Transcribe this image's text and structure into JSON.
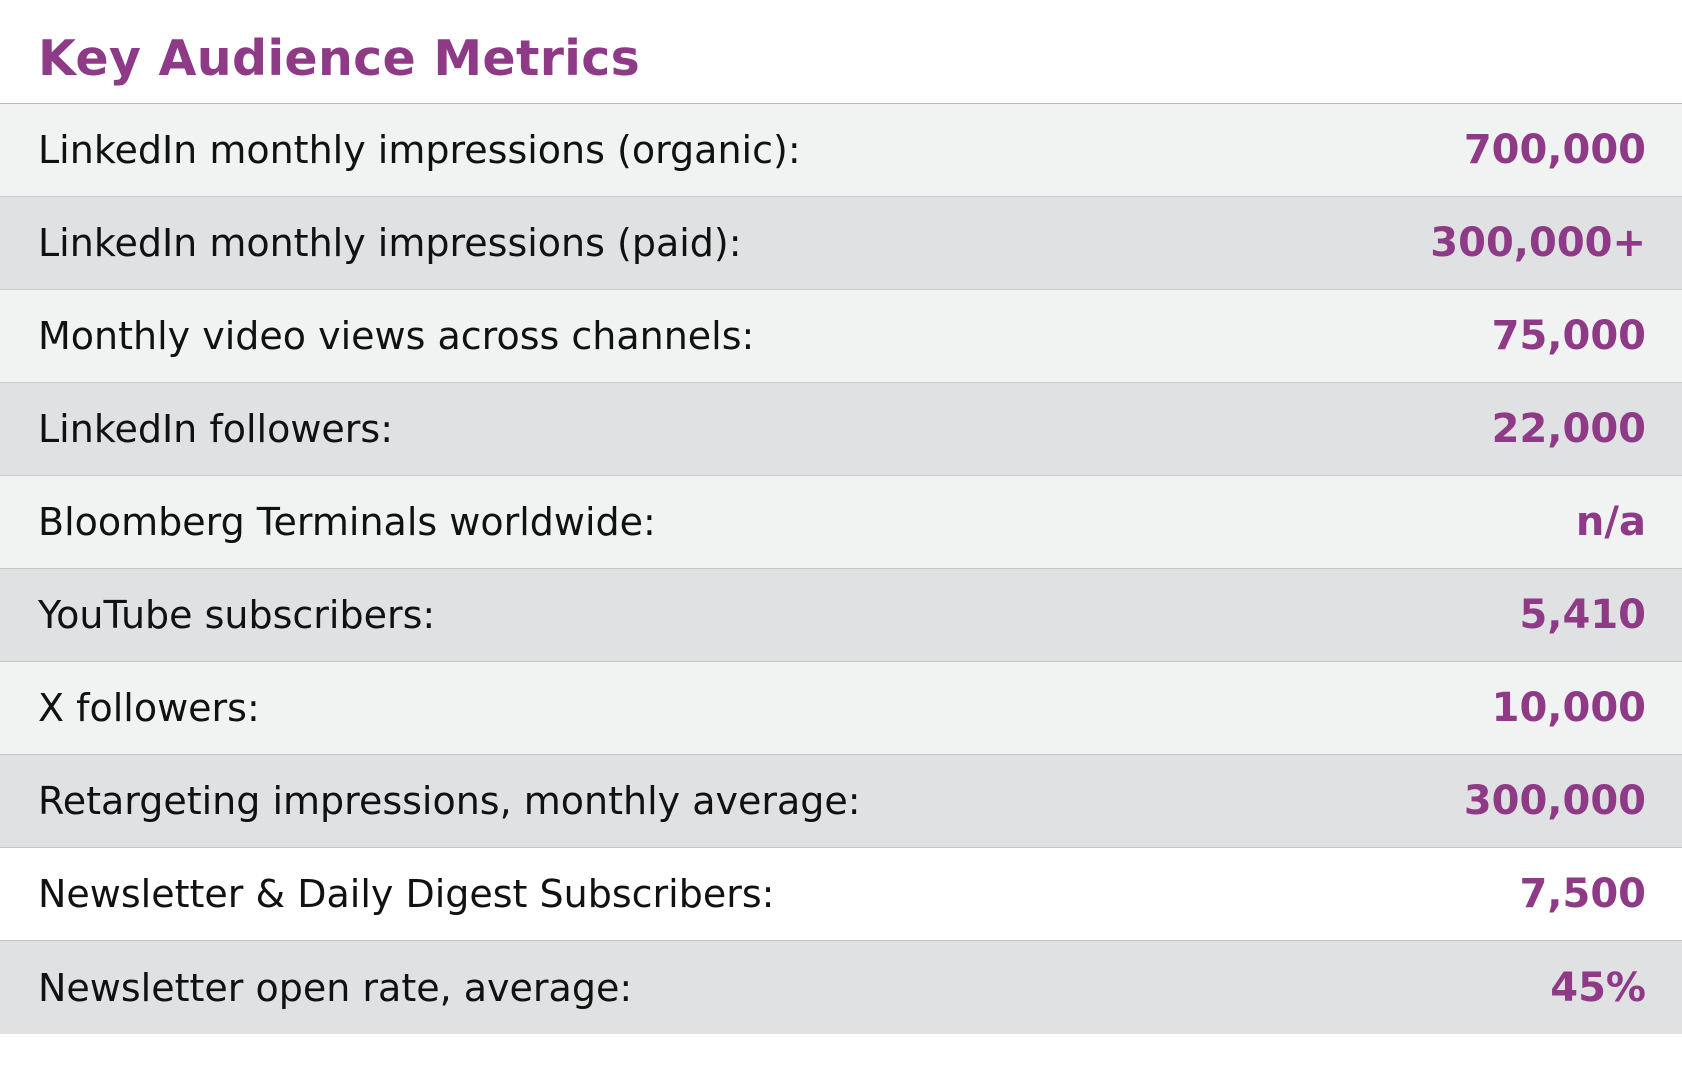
{
  "title": "Key Audience Metrics",
  "accent_color": "#8e3a87",
  "metrics": [
    {
      "label": "LinkedIn monthly impressions (organic):",
      "value": "700,000"
    },
    {
      "label": "LinkedIn monthly impressions (paid):",
      "value": "300,000+"
    },
    {
      "label": "Monthly video views across channels:",
      "value": "75,000"
    },
    {
      "label": "LinkedIn followers:",
      "value": "22,000"
    },
    {
      "label": "Bloomberg Terminals worldwide:",
      "value": "n/a"
    },
    {
      "label": "YouTube subscribers:",
      "value": "5,410"
    },
    {
      "label": "X followers:",
      "value": "10,000"
    },
    {
      "label": "Retargeting impressions, monthly average:",
      "value": "300,000"
    },
    {
      "label": "Newsletter & Daily Digest Subscribers:",
      "value": "7,500"
    },
    {
      "label": "Newsletter open rate, average:",
      "value": "45%"
    }
  ]
}
